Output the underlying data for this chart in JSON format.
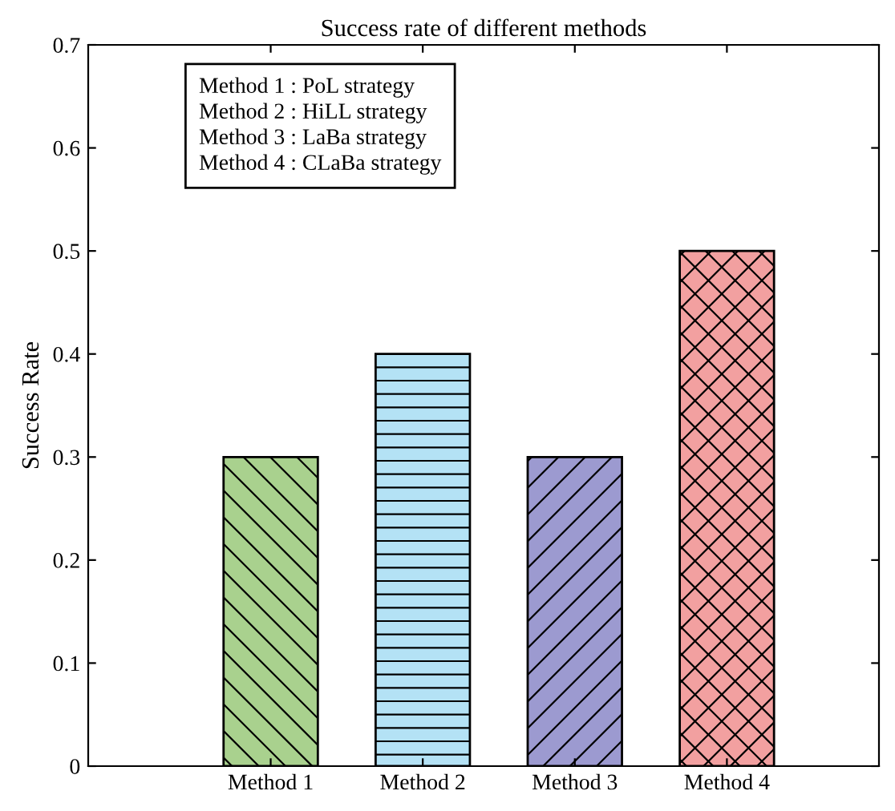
{
  "chart_data": {
    "type": "bar",
    "title": "Success rate of different methods",
    "ylabel": "Success Rate",
    "categories": [
      "Method 1",
      "Method 2",
      "Method 3",
      "Method 4"
    ],
    "values": [
      0.3,
      0.4,
      0.3,
      0.5
    ],
    "colors": [
      "#a9d18e",
      "#b4e2f5",
      "#9c9ad0",
      "#f2a0a0"
    ],
    "ylim": [
      0,
      0.7
    ],
    "yticks": [
      0,
      0.1,
      0.2,
      0.3,
      0.4,
      0.5,
      0.6,
      0.7
    ],
    "grid": false,
    "annotations": [
      "Method 1 : PoL strategy",
      "Method 2 : HiLL strategy",
      "Method 3 : LaBa strategy",
      "Method 4 : CLaBa strategy"
    ]
  }
}
